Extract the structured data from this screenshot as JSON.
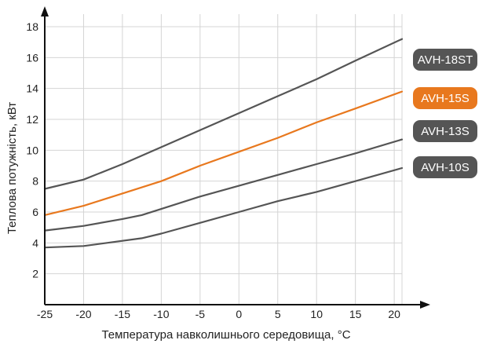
{
  "chart_data": {
    "type": "line",
    "xlabel": "Температура навколишнього середовища, °С",
    "ylabel": "Теплова потужність, кВт",
    "xlim": [
      -25,
      21
    ],
    "ylim": [
      0,
      18
    ],
    "x_ticks": [
      "-25",
      "-20",
      "-15",
      "-10",
      "-5",
      "0",
      "5",
      "10",
      "15",
      "20"
    ],
    "y_ticks": [
      "2",
      "4",
      "6",
      "8",
      "10",
      "12",
      "14",
      "16",
      "18"
    ],
    "grid": true,
    "legend_position": "right",
    "series": [
      {
        "name": "AVH-18ST",
        "color": "#555555",
        "x": [
          -25,
          -20,
          -15,
          -10,
          -5,
          0,
          5,
          10,
          15,
          21
        ],
        "y": [
          7.5,
          8.1,
          9.1,
          10.2,
          11.3,
          12.4,
          13.5,
          14.6,
          15.8,
          17.2
        ]
      },
      {
        "name": "AVH-15S",
        "color": "#e8781e",
        "x": [
          -25,
          -20,
          -15,
          -10,
          -5,
          0,
          5,
          10,
          15,
          21
        ],
        "y": [
          5.8,
          6.4,
          7.2,
          8.0,
          9.0,
          9.9,
          10.8,
          11.8,
          12.7,
          13.8
        ]
      },
      {
        "name": "AVH-13S",
        "color": "#555555",
        "x": [
          -25,
          -20,
          -15,
          -12.5,
          -10,
          -5,
          0,
          5,
          10,
          15,
          21
        ],
        "y": [
          4.8,
          5.1,
          5.55,
          5.8,
          6.2,
          7.0,
          7.7,
          8.4,
          9.1,
          9.8,
          10.7
        ]
      },
      {
        "name": "AVH-10S",
        "color": "#555555",
        "x": [
          -25,
          -20,
          -12.5,
          -10,
          -5,
          0,
          5,
          10,
          15,
          21
        ],
        "y": [
          3.7,
          3.8,
          4.3,
          4.6,
          5.3,
          6.0,
          6.7,
          7.3,
          8.0,
          8.85
        ]
      }
    ],
    "legend": [
      {
        "label": "AVH-18ST",
        "color": "#555555"
      },
      {
        "label": "AVH-15S",
        "color": "#e8781e"
      },
      {
        "label": "AVH-13S",
        "color": "#555555"
      },
      {
        "label": "AVH-10S",
        "color": "#555555"
      }
    ]
  }
}
